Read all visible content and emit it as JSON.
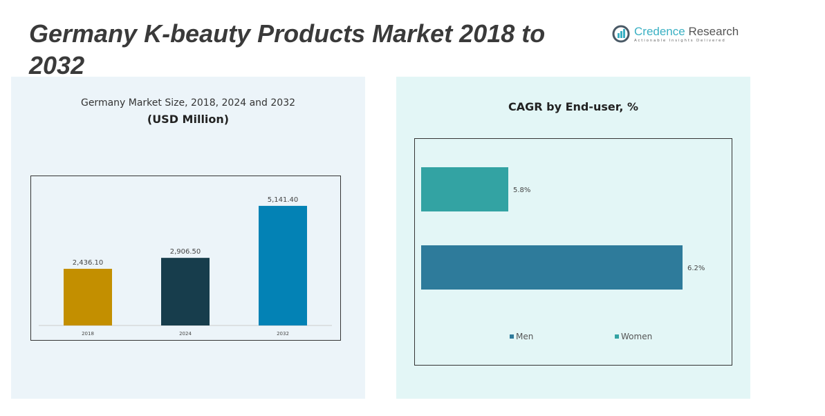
{
  "title": "Germany K-beauty Products Market 2018 to 2032",
  "logo": {
    "name_part1": "Credence",
    "name_part2": " Research",
    "tagline": "Actionable Insights Delivered"
  },
  "chart_data": [
    {
      "type": "bar",
      "title": "Germany Market Size, 2018, 2024 and 2032",
      "subtitle": "(USD Million)",
      "categories": [
        "2018",
        "2024",
        "2032"
      ],
      "values": [
        2436.1,
        2906.5,
        5141.4
      ],
      "labels": [
        "2,436.10",
        "2,906.50",
        "5,141.40"
      ],
      "colors": [
        "#c38f00",
        "#173d4c",
        "#0382b5"
      ],
      "ylim": [
        0,
        6000
      ],
      "grid": false
    },
    {
      "type": "bar",
      "orientation": "horizontal",
      "title": "CAGR by End-user, %",
      "categories": [
        "Women",
        "Men"
      ],
      "values": [
        5.8,
        6.2
      ],
      "labels": [
        "5.8%",
        "6.2%"
      ],
      "colors": [
        "#33a3a3",
        "#2e7b9b"
      ],
      "xlim": [
        5.6,
        6.3
      ],
      "legend": "bottom",
      "legend_entries": [
        {
          "name": "Men",
          "color": "#2e7b9b"
        },
        {
          "name": "Women",
          "color": "#33a3a3"
        }
      ],
      "grid": false
    }
  ]
}
